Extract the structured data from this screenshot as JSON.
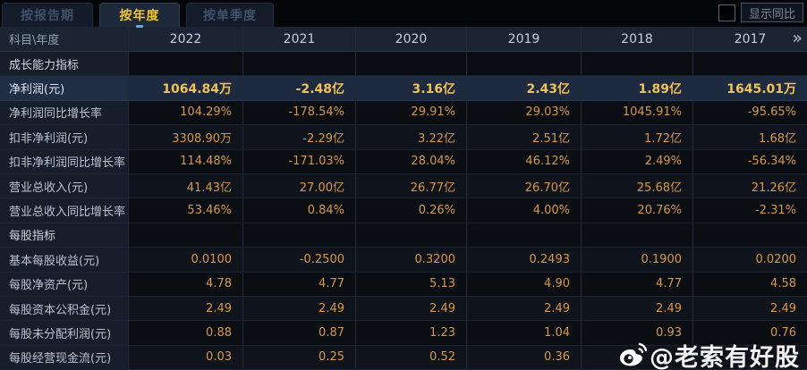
{
  "tabs": [
    {
      "label": "按报告期",
      "active": false
    },
    {
      "label": "按年度",
      "active": true
    },
    {
      "label": "按单季度",
      "active": false
    }
  ],
  "controls": {
    "show_yoy_label": "显示同比"
  },
  "table": {
    "corner_label": "科目\\年度",
    "years": [
      "2022",
      "2021",
      "2020",
      "2019",
      "2018",
      "2017"
    ],
    "more_years_icon": "»",
    "rows": [
      {
        "type": "section",
        "label": "成长能力指标",
        "values": [
          "",
          "",
          "",
          "",
          "",
          ""
        ]
      },
      {
        "type": "highlight",
        "label": "净利润(元)",
        "values": [
          "1064.84万",
          "-2.48亿",
          "3.16亿",
          "2.43亿",
          "1.89亿",
          "1645.01万"
        ]
      },
      {
        "type": "plain",
        "label": "净利润同比增长率",
        "values": [
          "104.29%",
          "-178.54%",
          "29.91%",
          "29.03%",
          "1045.91%",
          "-95.65%"
        ]
      },
      {
        "type": "tint",
        "label": "扣非净利润(元)",
        "values": [
          "3308.90万",
          "-2.29亿",
          "3.22亿",
          "2.51亿",
          "1.72亿",
          "1.68亿"
        ]
      },
      {
        "type": "plain",
        "label": "扣非净利润同比增长率",
        "values": [
          "114.48%",
          "-171.03%",
          "28.04%",
          "46.12%",
          "2.49%",
          "-56.34%"
        ]
      },
      {
        "type": "tint",
        "label": "营业总收入(元)",
        "values": [
          "41.43亿",
          "27.00亿",
          "26.77亿",
          "26.70亿",
          "25.68亿",
          "21.26亿"
        ]
      },
      {
        "type": "plain",
        "label": "营业总收入同比增长率",
        "values": [
          "53.46%",
          "0.84%",
          "0.26%",
          "4.00%",
          "20.76%",
          "-2.31%"
        ]
      },
      {
        "type": "section",
        "label": "每股指标",
        "values": [
          "",
          "",
          "",
          "",
          "",
          ""
        ]
      },
      {
        "type": "tint",
        "label": "基本每股收益(元)",
        "values": [
          "0.0100",
          "-0.2500",
          "0.3200",
          "0.2493",
          "0.1900",
          "0.0200"
        ]
      },
      {
        "type": "plain",
        "label": "每股净资产(元)",
        "values": [
          "4.78",
          "4.77",
          "5.13",
          "4.90",
          "4.77",
          "4.58"
        ]
      },
      {
        "type": "tint",
        "label": "每股资本公积金(元)",
        "values": [
          "2.49",
          "2.49",
          "2.49",
          "2.49",
          "2.49",
          "2.49"
        ]
      },
      {
        "type": "plain",
        "label": "每股未分配利润(元)",
        "values": [
          "0.88",
          "0.87",
          "1.23",
          "1.04",
          "0.93",
          "0.76"
        ]
      },
      {
        "type": "tint",
        "label": "每股经营现金流(元)",
        "values": [
          "0.03",
          "0.25",
          "0.52",
          "0.36",
          "",
          ""
        ]
      }
    ]
  },
  "watermark": {
    "text": "@老索有好股",
    "icon": "weibo-logo"
  },
  "colors": {
    "accent_yellow": "#f2c52c",
    "highlight_value": "#f1c156",
    "value_orange": "#d89748",
    "header_bg": "#1a2432",
    "highlight_row_bg": "#1d2a3f",
    "label_col_bg": "#161e2a",
    "page_bg": "#05080c"
  }
}
